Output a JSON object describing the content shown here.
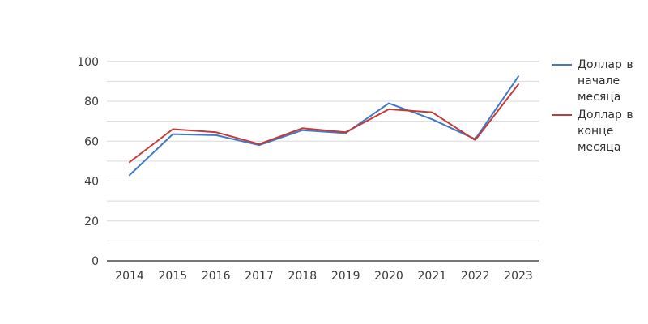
{
  "chart_data": {
    "type": "line",
    "title": "",
    "xlabel": "",
    "ylabel": "",
    "x": [
      "2014",
      "2015",
      "2016",
      "2017",
      "2018",
      "2019",
      "2020",
      "2021",
      "2022",
      "2023"
    ],
    "series": [
      {
        "name": "Доллар в начале месяца",
        "color": "#4079c4",
        "values": [
          43,
          63.5,
          63,
          58,
          65.5,
          64,
          79,
          71,
          61,
          92.5
        ]
      },
      {
        "name": "Доллар в конце месяца",
        "color": "#c23b38",
        "values": [
          49.5,
          66,
          64.5,
          58.5,
          66.5,
          64.5,
          76,
          74.5,
          60.5,
          88.5
        ]
      }
    ],
    "ylim": [
      0,
      100
    ],
    "yticks": [
      0,
      20,
      40,
      60,
      80,
      100
    ],
    "grid": true,
    "grid_step": 10,
    "legend_position": "right-outside",
    "grid_color": "#d9d9d9",
    "axis_color": "#262626",
    "tick_label_color": "#3a3a3a",
    "background_color": "#ffffff"
  }
}
